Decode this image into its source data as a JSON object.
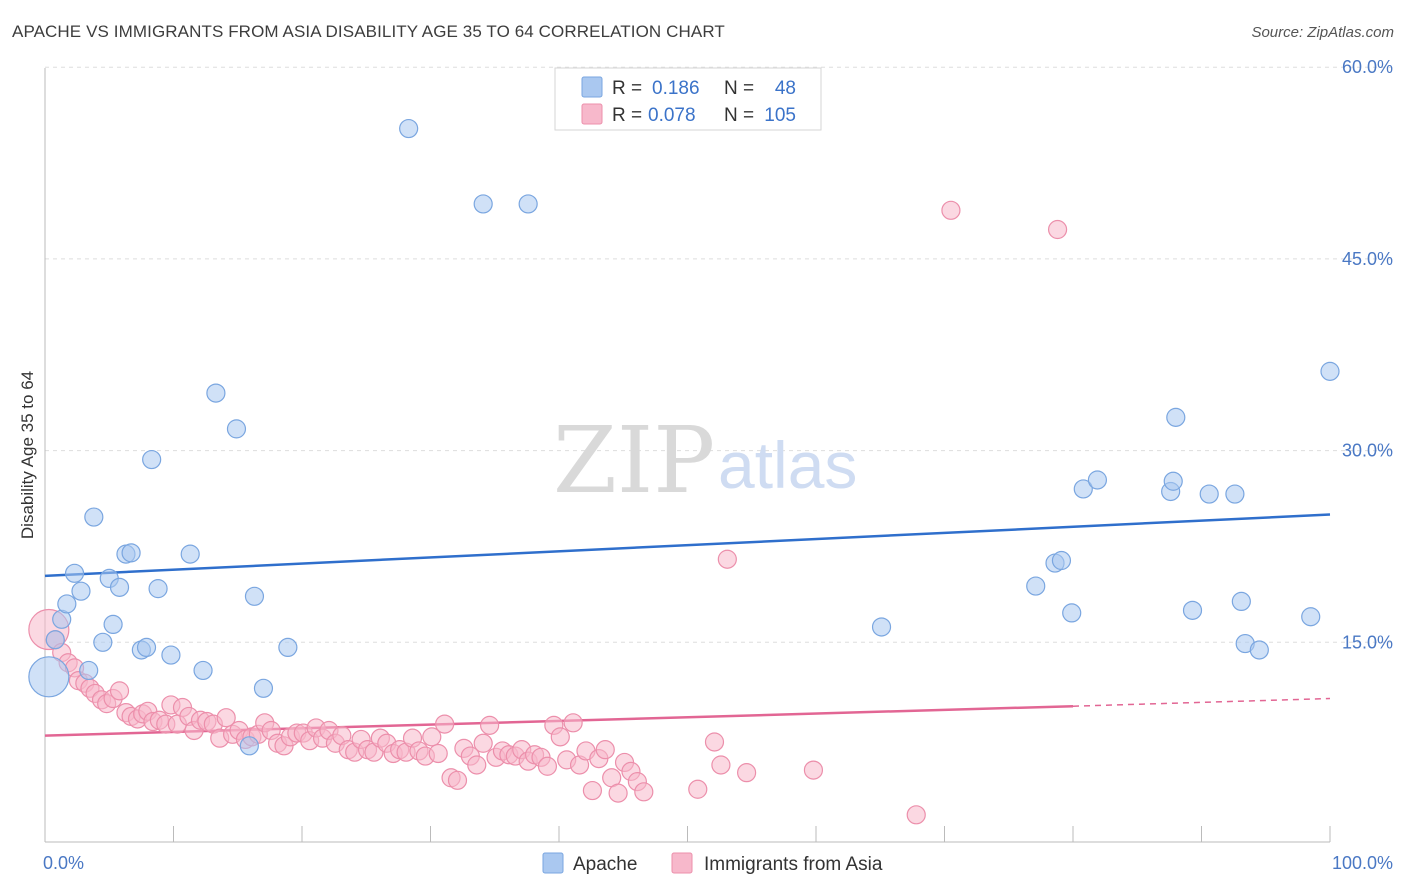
{
  "title": "APACHE VS IMMIGRANTS FROM ASIA DISABILITY AGE 35 TO 64 CORRELATION CHART",
  "source": "Source: ZipAtlas.com",
  "watermark": {
    "zip": "ZIP",
    "atlas": "atlas"
  },
  "legend_top": {
    "rows": [
      {
        "r_label": "R =",
        "r_value": "0.186",
        "n_label": "N =",
        "n_value": "48"
      },
      {
        "r_label": "R =",
        "r_value": "0.078",
        "n_label": "N =",
        "n_value": "105"
      }
    ]
  },
  "legend_bottom": {
    "apache": "Apache",
    "asia": "Immigrants from Asia"
  },
  "colors": {
    "apache_fill": "#aac8f0",
    "apache_stroke": "#7aa6e0",
    "apache_line": "#2f6fcc",
    "asia_fill": "#f7b8cb",
    "asia_stroke": "#ec8fab",
    "asia_line": "#e26694",
    "tick_text": "#4a78c4",
    "grid": "#dddddd"
  },
  "chart_data": {
    "type": "scatter",
    "title": "APACHE VS IMMIGRANTS FROM ASIA DISABILITY AGE 35 TO 64 CORRELATION CHART",
    "xlabel": "",
    "ylabel": "Disability Age 35 to 64",
    "xlim": [
      0,
      100
    ],
    "ylim": [
      0,
      62
    ],
    "x_tick_labels": [
      "0.0%",
      "100.0%"
    ],
    "y_ticks": [
      15,
      30,
      45,
      60
    ],
    "y_tick_labels": [
      "15.0%",
      "30.0%",
      "45.0%",
      "60.0%"
    ],
    "grid": true,
    "legend_position": "top-center",
    "series": [
      {
        "name": "Apache",
        "r": 0.186,
        "n": 48,
        "trend": {
          "x": [
            0,
            100
          ],
          "y": [
            20.2,
            25.0
          ]
        },
        "points": [
          [
            0.3,
            12.3
          ],
          [
            0.8,
            15.2
          ],
          [
            1.3,
            16.8
          ],
          [
            1.7,
            18.0
          ],
          [
            2.3,
            20.4
          ],
          [
            2.8,
            19.0
          ],
          [
            3.4,
            12.8
          ],
          [
            3.8,
            24.8
          ],
          [
            4.5,
            15.0
          ],
          [
            5.0,
            20.0
          ],
          [
            5.3,
            16.4
          ],
          [
            5.8,
            19.3
          ],
          [
            6.3,
            21.9
          ],
          [
            6.7,
            22.0
          ],
          [
            7.5,
            14.4
          ],
          [
            7.9,
            14.6
          ],
          [
            8.3,
            29.3
          ],
          [
            8.8,
            19.2
          ],
          [
            9.8,
            14.0
          ],
          [
            11.3,
            21.9
          ],
          [
            12.3,
            12.8
          ],
          [
            13.3,
            34.5
          ],
          [
            14.9,
            31.7
          ],
          [
            15.9,
            6.9
          ],
          [
            16.3,
            18.6
          ],
          [
            17.0,
            11.4
          ],
          [
            18.9,
            14.6
          ],
          [
            28.3,
            55.2
          ],
          [
            34.1,
            49.3
          ],
          [
            37.6,
            49.3
          ],
          [
            65.1,
            16.2
          ],
          [
            77.1,
            19.4
          ],
          [
            78.6,
            21.2
          ],
          [
            79.1,
            21.4
          ],
          [
            79.9,
            17.3
          ],
          [
            80.8,
            27.0
          ],
          [
            81.9,
            27.7
          ],
          [
            87.6,
            26.8
          ],
          [
            87.8,
            27.6
          ],
          [
            88.0,
            32.6
          ],
          [
            89.3,
            17.5
          ],
          [
            90.6,
            26.6
          ],
          [
            92.6,
            26.6
          ],
          [
            93.1,
            18.2
          ],
          [
            93.4,
            14.9
          ],
          [
            94.5,
            14.4
          ],
          [
            98.5,
            17.0
          ],
          [
            100.0,
            36.2
          ]
        ]
      },
      {
        "name": "Immigrants from Asia",
        "r": 0.078,
        "n": 105,
        "trend": {
          "x": [
            0,
            80
          ],
          "y": [
            7.7,
            10.0
          ]
        },
        "trend_dashed": {
          "x": [
            80,
            100
          ],
          "y": [
            10.0,
            10.6
          ]
        },
        "points": [
          [
            0.3,
            16.0
          ],
          [
            0.8,
            15.2
          ],
          [
            1.3,
            14.2
          ],
          [
            1.8,
            13.4
          ],
          [
            2.3,
            13.0
          ],
          [
            2.6,
            12.0
          ],
          [
            3.1,
            11.8
          ],
          [
            3.5,
            11.4
          ],
          [
            3.9,
            11.0
          ],
          [
            4.4,
            10.5
          ],
          [
            4.8,
            10.2
          ],
          [
            5.3,
            10.6
          ],
          [
            5.8,
            11.2
          ],
          [
            6.3,
            9.5
          ],
          [
            6.7,
            9.2
          ],
          [
            7.2,
            9.0
          ],
          [
            7.6,
            9.4
          ],
          [
            8.0,
            9.6
          ],
          [
            8.4,
            8.8
          ],
          [
            8.9,
            8.9
          ],
          [
            9.4,
            8.6
          ],
          [
            9.8,
            10.1
          ],
          [
            10.3,
            8.6
          ],
          [
            10.7,
            9.9
          ],
          [
            11.2,
            9.2
          ],
          [
            11.6,
            8.1
          ],
          [
            12.1,
            8.9
          ],
          [
            12.6,
            8.8
          ],
          [
            13.1,
            8.6
          ],
          [
            13.6,
            7.5
          ],
          [
            14.1,
            9.1
          ],
          [
            14.6,
            7.8
          ],
          [
            15.1,
            8.1
          ],
          [
            15.6,
            7.4
          ],
          [
            16.1,
            7.6
          ],
          [
            16.6,
            7.8
          ],
          [
            17.1,
            8.7
          ],
          [
            17.6,
            8.1
          ],
          [
            18.1,
            7.1
          ],
          [
            18.6,
            6.9
          ],
          [
            19.1,
            7.6
          ],
          [
            19.6,
            7.9
          ],
          [
            20.1,
            7.9
          ],
          [
            20.6,
            7.3
          ],
          [
            21.1,
            8.3
          ],
          [
            21.6,
            7.5
          ],
          [
            22.1,
            8.1
          ],
          [
            22.6,
            7.1
          ],
          [
            23.1,
            7.7
          ],
          [
            23.6,
            6.6
          ],
          [
            24.1,
            6.4
          ],
          [
            24.6,
            7.4
          ],
          [
            25.1,
            6.6
          ],
          [
            25.6,
            6.4
          ],
          [
            26.1,
            7.5
          ],
          [
            26.6,
            7.1
          ],
          [
            27.1,
            6.3
          ],
          [
            27.6,
            6.6
          ],
          [
            28.1,
            6.4
          ],
          [
            28.6,
            7.5
          ],
          [
            29.1,
            6.5
          ],
          [
            29.6,
            6.1
          ],
          [
            30.1,
            7.6
          ],
          [
            30.6,
            6.3
          ],
          [
            31.1,
            8.6
          ],
          [
            31.6,
            4.4
          ],
          [
            32.1,
            4.2
          ],
          [
            32.6,
            6.7
          ],
          [
            33.1,
            6.1
          ],
          [
            33.6,
            5.4
          ],
          [
            34.1,
            7.1
          ],
          [
            34.6,
            8.5
          ],
          [
            35.1,
            6.0
          ],
          [
            35.6,
            6.5
          ],
          [
            36.1,
            6.2
          ],
          [
            36.6,
            6.1
          ],
          [
            37.1,
            6.6
          ],
          [
            37.6,
            5.7
          ],
          [
            38.1,
            6.2
          ],
          [
            38.6,
            6.0
          ],
          [
            39.1,
            5.3
          ],
          [
            39.6,
            8.5
          ],
          [
            40.1,
            7.6
          ],
          [
            40.6,
            5.8
          ],
          [
            41.1,
            8.7
          ],
          [
            41.6,
            5.4
          ],
          [
            42.1,
            6.5
          ],
          [
            42.6,
            3.4
          ],
          [
            43.1,
            5.9
          ],
          [
            43.6,
            6.6
          ],
          [
            44.1,
            4.4
          ],
          [
            44.6,
            3.2
          ],
          [
            45.1,
            5.6
          ],
          [
            45.6,
            4.9
          ],
          [
            46.1,
            4.1
          ],
          [
            46.6,
            3.3
          ],
          [
            50.8,
            3.5
          ],
          [
            52.1,
            7.2
          ],
          [
            52.6,
            5.4
          ],
          [
            53.1,
            21.5
          ],
          [
            54.6,
            4.8
          ],
          [
            59.8,
            5.0
          ],
          [
            67.8,
            1.5
          ],
          [
            70.5,
            48.8
          ],
          [
            78.8,
            47.3
          ]
        ]
      }
    ]
  }
}
